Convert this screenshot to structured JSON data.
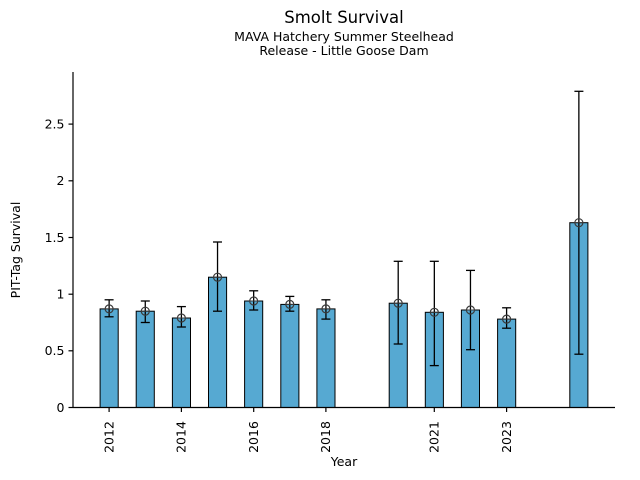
{
  "figure": {
    "title": "Smolt Survival",
    "subtitle_line1": "MAVA Hatchery Summer Steelhead",
    "subtitle_line2": "Release - Little Goose Dam"
  },
  "chart_data": {
    "type": "bar",
    "title": "Smolt Survival",
    "subtitle": [
      "MAVA Hatchery Summer Steelhead",
      "Release - Little Goose Dam"
    ],
    "xlabel": "Year",
    "ylabel": "PIT-Tag Survival",
    "xlim": [
      2011,
      2026
    ],
    "ylim": [
      0,
      2.96
    ],
    "grid": false,
    "legend": "none",
    "bar_width_years": 0.5,
    "colors": {
      "bar_fill": "#56a9d2",
      "bar_edge": "#000000",
      "error_bar": "#000000",
      "marker_edge": "#3a3a3a",
      "axis": "#000000",
      "text": "#000000",
      "background": "#ffffff"
    },
    "x_ticks": [
      {
        "value": 2012,
        "label": "2012"
      },
      {
        "value": 2014,
        "label": "2014"
      },
      {
        "value": 2016,
        "label": "2016"
      },
      {
        "value": 2018,
        "label": "2018"
      },
      {
        "value": 2021,
        "label": "2021"
      },
      {
        "value": 2023,
        "label": "2023"
      }
    ],
    "y_ticks": [
      {
        "value": 0,
        "label": "0"
      },
      {
        "value": 0.5,
        "label": "0.5"
      },
      {
        "value": 1,
        "label": "1"
      },
      {
        "value": 1.5,
        "label": "1.5"
      },
      {
        "value": 2,
        "label": "2"
      },
      {
        "value": 2.5,
        "label": "2.5"
      }
    ],
    "series": [
      {
        "name": "PIT-Tag Survival",
        "marker": "open-circle",
        "points": [
          {
            "year": 2012,
            "value": 0.87,
            "err_low": 0.8,
            "err_high": 0.95
          },
          {
            "year": 2013,
            "value": 0.85,
            "err_low": 0.75,
            "err_high": 0.94
          },
          {
            "year": 2014,
            "value": 0.79,
            "err_low": 0.71,
            "err_high": 0.89
          },
          {
            "year": 2015,
            "value": 1.15,
            "err_low": 0.85,
            "err_high": 1.46
          },
          {
            "year": 2016,
            "value": 0.94,
            "err_low": 0.86,
            "err_high": 1.03
          },
          {
            "year": 2017,
            "value": 0.91,
            "err_low": 0.85,
            "err_high": 0.98
          },
          {
            "year": 2018,
            "value": 0.87,
            "err_low": 0.78,
            "err_high": 0.95
          },
          {
            "year": 2020,
            "value": 0.92,
            "err_low": 0.56,
            "err_high": 1.29
          },
          {
            "year": 2021,
            "value": 0.84,
            "err_low": 0.37,
            "err_high": 1.29
          },
          {
            "year": 2022,
            "value": 0.86,
            "err_low": 0.51,
            "err_high": 1.21
          },
          {
            "year": 2023,
            "value": 0.78,
            "err_low": 0.7,
            "err_high": 0.88
          },
          {
            "year": 2025,
            "value": 1.63,
            "err_low": 0.47,
            "err_high": 2.79
          }
        ]
      }
    ]
  }
}
